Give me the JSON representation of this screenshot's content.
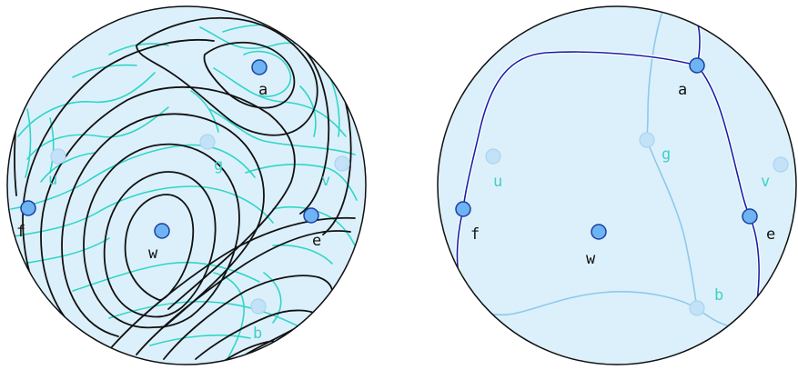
{
  "colors": {
    "disk_fill": "#dcf0fb",
    "disk_stroke": "#111111",
    "contour_dark": "#111111",
    "contour_cyan": "#2fd6c6",
    "curve_navy": "#1c1fa8",
    "curve_light": "#8ec9ea",
    "node_dark_fill": "#6fb4f2",
    "node_dark_stroke": "#1a3fa0",
    "node_light_fill": "#c3e2f7",
    "node_light_stroke": "#a9d4f0"
  },
  "left_panel": {
    "labels": {
      "a": "a",
      "g": "g",
      "u": "u",
      "v": "v",
      "f": "f",
      "e": "e",
      "w": "w",
      "b": "b"
    }
  },
  "right_panel": {
    "labels": {
      "a": "a",
      "g": "g",
      "u": "u",
      "v": "v",
      "f": "f",
      "e": "e",
      "w": "w",
      "b": "b"
    }
  }
}
